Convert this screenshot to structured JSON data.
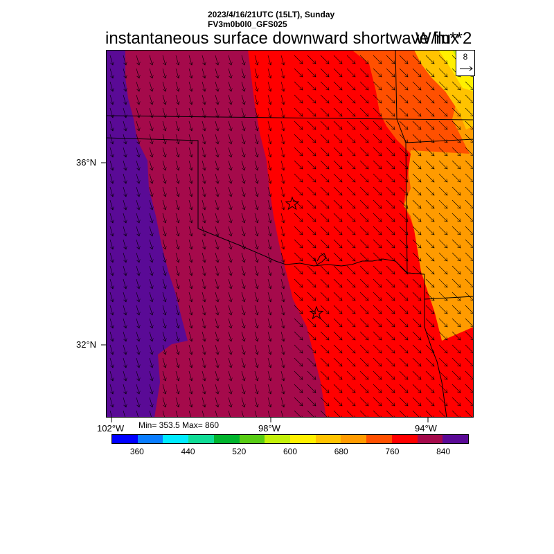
{
  "header": {
    "datetime": "2023/4/16/21UTC (15LT), Sunday",
    "model": "FV3m0b0l0_GFS025",
    "title": "instantaneous surface downward shortwave flux",
    "units": "W/m**2"
  },
  "stats": {
    "text": "Min= 353.5 Max= 860",
    "min": 353.5,
    "max": 860
  },
  "axes": {
    "lat_labels": [
      "36°N",
      "32°N"
    ],
    "lon_labels": [
      "102°W",
      "98°W",
      "94°W"
    ]
  },
  "reference_vector": {
    "label": "8"
  },
  "colorbar": {
    "colors": [
      "#0000ff",
      "#0a7dff",
      "#00ebff",
      "#10dc96",
      "#00b42d",
      "#58cc14",
      "#c3f00a",
      "#fff000",
      "#ffc300",
      "#ff9b00",
      "#ff5000",
      "#ff0000",
      "#a50a4b",
      "#5a0a96"
    ],
    "tick_labels": [
      "360",
      "440",
      "520",
      "600",
      "680",
      "760",
      "840"
    ]
  },
  "map_layers": {
    "lowest_band_color": "#5a0a96",
    "second_band_color": "#a50a4b",
    "third_band_color": "#ff0000",
    "fourth_band_color": "#ff5000",
    "fifth_band_color": "#ff9b00",
    "corner_colors": [
      "#ffc300",
      "#fff000",
      "#c3f00a",
      "#58cc14"
    ],
    "markers": [
      "star-icon",
      "star-icon"
    ]
  }
}
